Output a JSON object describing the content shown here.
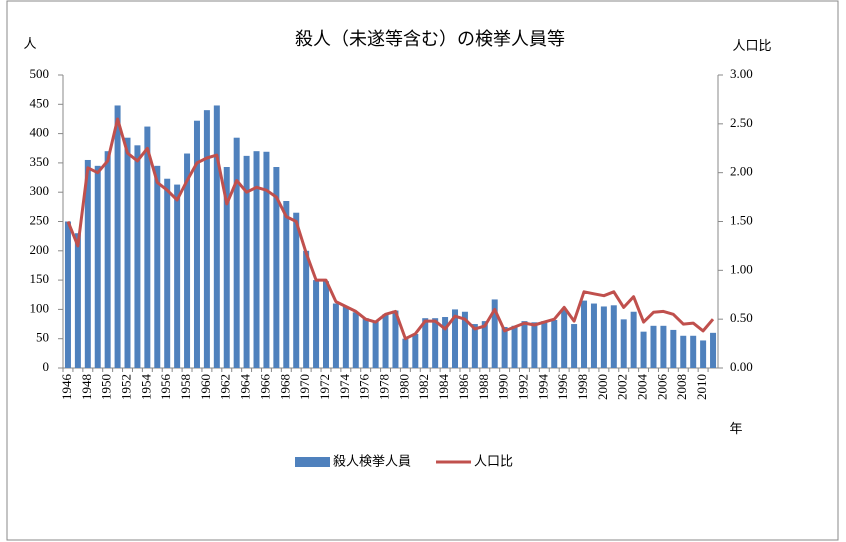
{
  "chart_data": {
    "type": "bar",
    "title": "殺人（未遂等含む）の検挙人員等",
    "y_label": "人",
    "y2_label": "人口比",
    "x_label": "年",
    "legend": "bottom",
    "grid": false,
    "categories": [
      "1946",
      null,
      "1948",
      null,
      "1950",
      null,
      "1952",
      null,
      "1954",
      null,
      "1956",
      null,
      "1958",
      null,
      "1960",
      null,
      "1962",
      null,
      "1964",
      null,
      "1966",
      null,
      "1968",
      null,
      "1970",
      null,
      "1972",
      null,
      "1974",
      null,
      "1976",
      null,
      "1978",
      null,
      "1980",
      null,
      "1982",
      null,
      "1984",
      null,
      "1986",
      null,
      "1988",
      null,
      "1990",
      null,
      "1992",
      null,
      "1994",
      null,
      "1996",
      null,
      "1998",
      null,
      "2000",
      null,
      "2002",
      null,
      "2004",
      null,
      "2006",
      null,
      "2008",
      null,
      "2010",
      null
    ],
    "series": [
      {
        "name": "殺人検挙人員",
        "type": "bar",
        "color": "#4f81bd",
        "values": [
          250,
          230,
          355,
          345,
          370,
          448,
          393,
          380,
          412,
          345,
          323,
          313,
          366,
          422,
          440,
          448,
          343,
          393,
          362,
          370,
          369,
          343,
          285,
          265,
          200,
          150,
          148,
          110,
          105,
          95,
          85,
          80,
          92,
          98,
          50,
          58,
          85,
          85,
          87,
          100,
          96,
          75,
          80,
          117,
          70,
          72,
          80,
          78,
          80,
          82,
          100,
          75,
          115,
          110,
          105,
          107,
          83,
          96,
          62,
          72,
          72,
          65,
          55,
          55,
          47,
          60
        ]
      },
      {
        "name": "人口比",
        "type": "line",
        "axis": "y2",
        "color": "#c0504d",
        "values": [
          1.5,
          1.25,
          2.05,
          2.0,
          2.12,
          2.55,
          2.2,
          2.12,
          2.25,
          1.9,
          1.82,
          1.72,
          1.92,
          2.1,
          2.15,
          2.18,
          1.68,
          1.92,
          1.8,
          1.85,
          1.82,
          1.75,
          1.55,
          1.5,
          1.18,
          0.9,
          0.9,
          0.68,
          0.63,
          0.58,
          0.5,
          0.47,
          0.55,
          0.58,
          0.3,
          0.35,
          0.48,
          0.48,
          0.4,
          0.53,
          0.5,
          0.4,
          0.43,
          0.6,
          0.38,
          0.42,
          0.46,
          0.44,
          0.47,
          0.5,
          0.62,
          0.48,
          0.78,
          0.76,
          0.74,
          0.78,
          0.62,
          0.73,
          0.47,
          0.57,
          0.58,
          0.55,
          0.45,
          0.46,
          0.38,
          0.5
        ]
      }
    ],
    "ylim": [
      0,
      500
    ],
    "yticks": [
      0,
      50,
      100,
      150,
      200,
      250,
      300,
      350,
      400,
      450,
      500
    ],
    "y2lim": [
      0,
      3
    ],
    "y2ticks": [
      {
        "value": 0,
        "label": "0.00"
      },
      {
        "value": 0.5,
        "label": "0.50"
      },
      {
        "value": 1,
        "label": "1.00"
      },
      {
        "value": 1.5,
        "label": "1.50"
      },
      {
        "value": 2,
        "label": "2.00"
      },
      {
        "value": 2.5,
        "label": "2.50"
      },
      {
        "value": 3,
        "label": "3.00"
      }
    ]
  }
}
